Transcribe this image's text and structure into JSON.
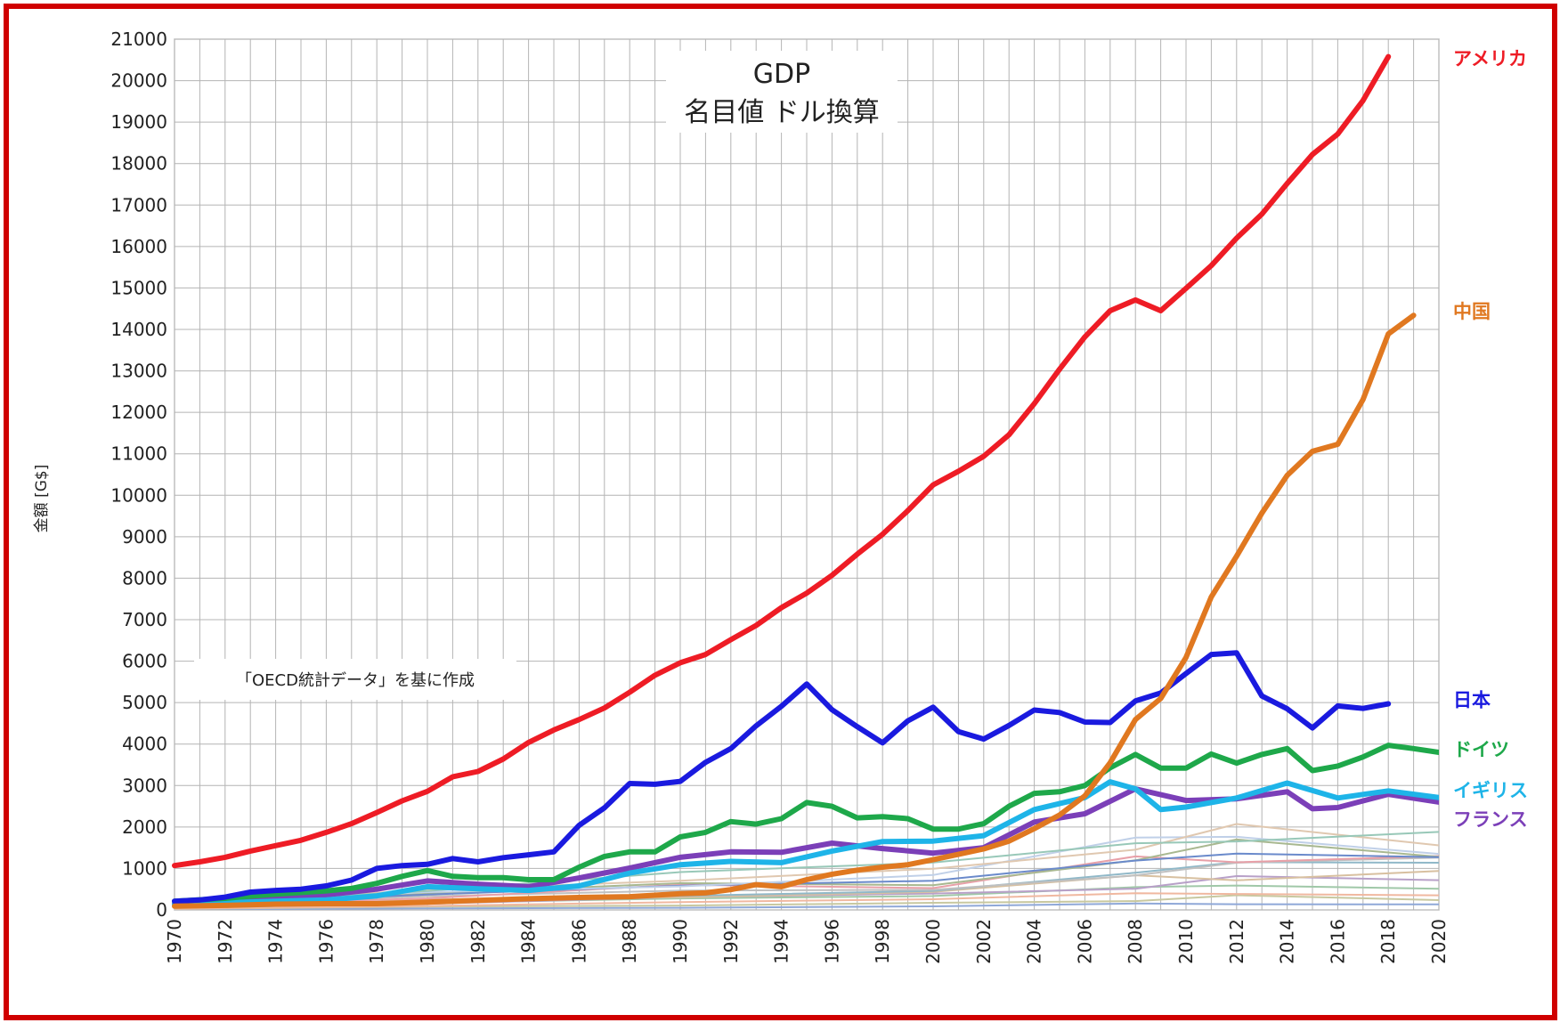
{
  "chart_data": {
    "type": "line",
    "title": "GDP",
    "subtitle": "名目値 ドル換算",
    "note": "「OECD統計データ」を基に作成",
    "ylabel": "金額 [G$]",
    "xlabel": "",
    "xlim": [
      1970,
      2020
    ],
    "ylim": [
      0,
      21000
    ],
    "yticks": [
      0,
      1000,
      2000,
      3000,
      4000,
      5000,
      6000,
      7000,
      8000,
      9000,
      10000,
      11000,
      12000,
      13000,
      14000,
      15000,
      16000,
      17000,
      18000,
      19000,
      20000,
      21000
    ],
    "xticks": [
      1970,
      1972,
      1974,
      1976,
      1978,
      1980,
      1982,
      1984,
      1986,
      1988,
      1990,
      1992,
      1994,
      1996,
      1998,
      2000,
      2002,
      2004,
      2006,
      2008,
      2010,
      2012,
      2014,
      2016,
      2018,
      2020
    ],
    "grid": true,
    "series": [
      {
        "name": "アメリカ",
        "color": "#ee1c25",
        "x": [
          1970,
          1971,
          1972,
          1973,
          1974,
          1975,
          1976,
          1977,
          1978,
          1979,
          1980,
          1981,
          1982,
          1983,
          1984,
          1985,
          1986,
          1987,
          1988,
          1989,
          1990,
          1991,
          1992,
          1993,
          1994,
          1995,
          1996,
          1997,
          1998,
          1999,
          2000,
          2001,
          2002,
          2003,
          2004,
          2005,
          2006,
          2007,
          2008,
          2009,
          2010,
          2011,
          2012,
          2013,
          2014,
          2015,
          2016,
          2017,
          2018
        ],
        "y": [
          1070,
          1160,
          1270,
          1420,
          1550,
          1680,
          1870,
          2080,
          2350,
          2630,
          2860,
          3210,
          3340,
          3640,
          4040,
          4340,
          4590,
          4870,
          5250,
          5660,
          5960,
          6160,
          6520,
          6860,
          7290,
          7640,
          8070,
          8580,
          9060,
          9630,
          10250,
          10580,
          10940,
          11460,
          12210,
          13040,
          13820,
          14450,
          14710,
          14450,
          14990,
          15540,
          16200,
          16780,
          17520,
          18220,
          18710,
          19520,
          20580
        ]
      },
      {
        "name": "中国",
        "color": "#e07820",
        "x": [
          1970,
          1972,
          1974,
          1976,
          1978,
          1980,
          1982,
          1984,
          1986,
          1988,
          1990,
          1991,
          1992,
          1993,
          1994,
          1995,
          1996,
          1997,
          1998,
          1999,
          2000,
          2001,
          2002,
          2003,
          2004,
          2005,
          2006,
          2007,
          2008,
          2009,
          2010,
          2011,
          2012,
          2013,
          2014,
          2015,
          2016,
          2017,
          2018,
          2019
        ],
        "y": [
          90,
          110,
          140,
          150,
          150,
          190,
          230,
          270,
          300,
          320,
          390,
          410,
          490,
          610,
          560,
          730,
          860,
          960,
          1030,
          1090,
          1210,
          1340,
          1470,
          1660,
          1960,
          2290,
          2750,
          3550,
          4590,
          5100,
          6090,
          7550,
          8530,
          9570,
          10480,
          11060,
          11230,
          12310,
          13890,
          14340
        ]
      },
      {
        "name": "日本",
        "color": "#1a1adf",
        "x": [
          1970,
          1971,
          1972,
          1973,
          1974,
          1975,
          1976,
          1977,
          1978,
          1979,
          1980,
          1981,
          1982,
          1983,
          1984,
          1985,
          1986,
          1987,
          1988,
          1989,
          1990,
          1991,
          1992,
          1993,
          1994,
          1995,
          1996,
          1997,
          1998,
          1999,
          2000,
          2001,
          2002,
          2003,
          2004,
          2005,
          2006,
          2007,
          2008,
          2009,
          2010,
          2011,
          2012,
          2013,
          2014,
          2015,
          2016,
          2017,
          2018
        ],
        "y": [
          210,
          240,
          310,
          430,
          470,
          500,
          580,
          720,
          1000,
          1070,
          1100,
          1240,
          1160,
          1260,
          1330,
          1400,
          2040,
          2460,
          3050,
          3030,
          3100,
          3560,
          3890,
          4440,
          4910,
          5450,
          4830,
          4420,
          4030,
          4560,
          4890,
          4300,
          4120,
          4450,
          4820,
          4760,
          4530,
          4520,
          5040,
          5230,
          5700,
          6160,
          6200,
          5160,
          4850,
          4390,
          4920,
          4860,
          4970
        ]
      },
      {
        "name": "ドイツ",
        "color": "#1ea84a",
        "x": [
          1970,
          1972,
          1974,
          1976,
          1977,
          1978,
          1979,
          1980,
          1981,
          1982,
          1983,
          1984,
          1985,
          1986,
          1987,
          1988,
          1989,
          1990,
          1991,
          1992,
          1993,
          1994,
          1995,
          1996,
          1997,
          1998,
          1999,
          2000,
          2001,
          2002,
          2003,
          2004,
          2005,
          2006,
          2007,
          2008,
          2009,
          2010,
          2011,
          2012,
          2013,
          2014,
          2015,
          2016,
          2017,
          2018,
          2019,
          2020
        ],
        "y": [
          210,
          280,
          380,
          460,
          520,
          640,
          810,
          950,
          810,
          780,
          780,
          730,
          730,
          1030,
          1290,
          1400,
          1400,
          1760,
          1870,
          2130,
          2070,
          2200,
          2590,
          2500,
          2220,
          2250,
          2200,
          1950,
          1950,
          2080,
          2500,
          2810,
          2850,
          3000,
          3430,
          3750,
          3420,
          3420,
          3760,
          3540,
          3750,
          3890,
          3360,
          3470,
          3690,
          3970,
          3890,
          3800
        ]
      },
      {
        "name": "イギリス",
        "color": "#1eb4e8",
        "x": [
          1970,
          1972,
          1974,
          1976,
          1978,
          1980,
          1982,
          1984,
          1986,
          1988,
          1990,
          1992,
          1994,
          1996,
          1998,
          2000,
          2002,
          2004,
          2006,
          2007,
          2008,
          2009,
          2010,
          2012,
          2014,
          2016,
          2018,
          2020
        ],
        "y": [
          130,
          170,
          210,
          240,
          340,
          560,
          510,
          470,
          580,
          890,
          1090,
          1170,
          1140,
          1420,
          1650,
          1660,
          1790,
          2420,
          2710,
          3090,
          2920,
          2420,
          2480,
          2700,
          3060,
          2700,
          2870,
          2710
        ]
      },
      {
        "name": "フランス",
        "color": "#7b3fb8",
        "x": [
          1970,
          1972,
          1974,
          1976,
          1978,
          1980,
          1982,
          1984,
          1986,
          1988,
          1990,
          1992,
          1994,
          1996,
          1998,
          2000,
          2002,
          2004,
          2006,
          2008,
          2010,
          2012,
          2014,
          2015,
          2016,
          2018,
          2020
        ],
        "y": [
          150,
          200,
          270,
          360,
          500,
          700,
          620,
          560,
          770,
          1010,
          1270,
          1400,
          1390,
          1610,
          1480,
          1370,
          1500,
          2120,
          2320,
          2920,
          2640,
          2680,
          2850,
          2440,
          2470,
          2790,
          2600
        ]
      }
    ]
  }
}
